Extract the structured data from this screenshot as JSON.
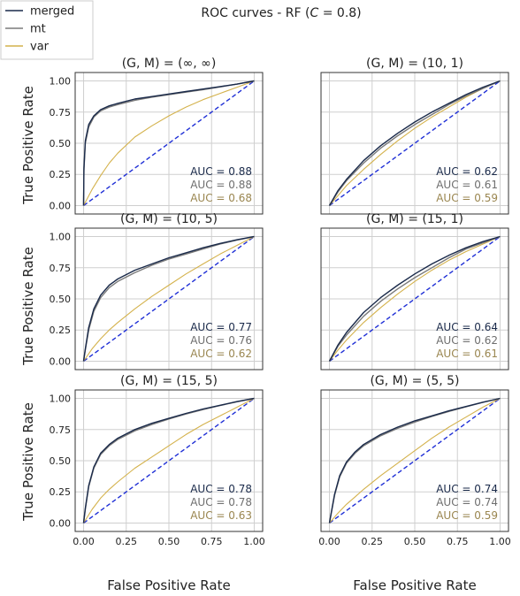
{
  "figure": {
    "title_prefix": "ROC curves - RF (",
    "title_math": "C",
    "title_suffix": " = 0.8)",
    "xlabel": "False Positive Rate",
    "ylabel": "True Positive Rate"
  },
  "legend": {
    "placement": "top-left",
    "entries": [
      {
        "label": "merged",
        "color": "#1a2a4a"
      },
      {
        "label": "mt",
        "color": "#7a7a7a"
      },
      {
        "label": "var",
        "color": "#d4b24c"
      }
    ]
  },
  "colors": {
    "merged": "#1a2a4a",
    "mt": "#7a7a7a",
    "var": "#d4b24c",
    "diagonal": "#1f2fd6",
    "grid": "#cfcfcf",
    "frame": "#333333",
    "auc_merged_text": "#1a2a4a",
    "auc_mt_text": "#6e6e6e",
    "auc_var_text": "#9a8650"
  },
  "chart_data": [
    {
      "type": "line",
      "title_prefix": "(G, M) = (",
      "title_value": "∞, ∞",
      "title_suffix": ")",
      "xlim": [
        0,
        1
      ],
      "ylim": [
        0,
        1
      ],
      "xticks": [
        "0.00",
        "0.25",
        "0.50",
        "0.75",
        "1.00"
      ],
      "yticks": [
        "0.00",
        "0.25",
        "0.50",
        "0.75",
        "1.00"
      ],
      "grid": true,
      "diagonal": true,
      "series": [
        {
          "name": "merged",
          "auc_label": "AUC = 0.88",
          "x": [
            0,
            0.002,
            0.01,
            0.03,
            0.06,
            0.1,
            0.15,
            0.2,
            0.3,
            0.4,
            0.5,
            0.6,
            0.7,
            0.8,
            0.9,
            1.0
          ],
          "y": [
            0,
            0.3,
            0.52,
            0.65,
            0.72,
            0.77,
            0.8,
            0.82,
            0.855,
            0.875,
            0.895,
            0.915,
            0.935,
            0.955,
            0.975,
            1.0
          ]
        },
        {
          "name": "mt",
          "auc_label": "AUC = 0.88",
          "x": [
            0,
            0.002,
            0.01,
            0.03,
            0.06,
            0.1,
            0.15,
            0.2,
            0.3,
            0.4,
            0.5,
            0.6,
            0.7,
            0.8,
            0.9,
            1.0
          ],
          "y": [
            0,
            0.28,
            0.5,
            0.63,
            0.71,
            0.76,
            0.79,
            0.81,
            0.845,
            0.87,
            0.89,
            0.91,
            0.93,
            0.952,
            0.975,
            1.0
          ]
        },
        {
          "name": "var",
          "auc_label": "AUC = 0.68",
          "x": [
            0,
            0.05,
            0.1,
            0.15,
            0.2,
            0.3,
            0.4,
            0.5,
            0.6,
            0.7,
            0.8,
            0.9,
            1.0
          ],
          "y": [
            0,
            0.13,
            0.24,
            0.34,
            0.42,
            0.55,
            0.64,
            0.72,
            0.79,
            0.85,
            0.9,
            0.95,
            1.0
          ]
        }
      ]
    },
    {
      "type": "line",
      "title_prefix": "(G, M) = (",
      "title_value": "10, 1",
      "title_suffix": ")",
      "xlim": [
        0,
        1
      ],
      "ylim": [
        0,
        1
      ],
      "xticks": [
        "0.00",
        "0.25",
        "0.50",
        "0.75",
        "1.00"
      ],
      "yticks": [
        "0.00",
        "0.25",
        "0.50",
        "0.75",
        "1.00"
      ],
      "grid": true,
      "diagonal": true,
      "series": [
        {
          "name": "merged",
          "auc_label": "AUC = 0.62",
          "x": [
            0,
            0.05,
            0.1,
            0.2,
            0.3,
            0.4,
            0.5,
            0.6,
            0.7,
            0.8,
            0.9,
            1.0
          ],
          "y": [
            0,
            0.12,
            0.21,
            0.36,
            0.48,
            0.58,
            0.67,
            0.75,
            0.82,
            0.89,
            0.95,
            1.0
          ]
        },
        {
          "name": "mt",
          "auc_label": "AUC = 0.61",
          "x": [
            0,
            0.05,
            0.1,
            0.2,
            0.3,
            0.4,
            0.5,
            0.6,
            0.7,
            0.8,
            0.9,
            1.0
          ],
          "y": [
            0,
            0.11,
            0.2,
            0.34,
            0.46,
            0.56,
            0.65,
            0.73,
            0.81,
            0.88,
            0.94,
            1.0
          ]
        },
        {
          "name": "var",
          "auc_label": "AUC = 0.59",
          "x": [
            0,
            0.05,
            0.1,
            0.2,
            0.3,
            0.4,
            0.5,
            0.6,
            0.7,
            0.8,
            0.9,
            1.0
          ],
          "y": [
            0,
            0.08,
            0.16,
            0.29,
            0.41,
            0.52,
            0.62,
            0.71,
            0.79,
            0.87,
            0.94,
            1.0
          ]
        }
      ]
    },
    {
      "type": "line",
      "title_prefix": "(G, M) = (",
      "title_value": "10, 5",
      "title_suffix": ")",
      "xlim": [
        0,
        1
      ],
      "ylim": [
        0,
        1
      ],
      "xticks": [
        "0.00",
        "0.25",
        "0.50",
        "0.75",
        "1.00"
      ],
      "yticks": [
        "0.00",
        "0.25",
        "0.50",
        "0.75",
        "1.00"
      ],
      "grid": true,
      "diagonal": true,
      "series": [
        {
          "name": "merged",
          "auc_label": "AUC = 0.77",
          "x": [
            0,
            0.01,
            0.03,
            0.06,
            0.1,
            0.15,
            0.2,
            0.3,
            0.4,
            0.5,
            0.6,
            0.7,
            0.8,
            0.9,
            1.0
          ],
          "y": [
            0,
            0.1,
            0.27,
            0.42,
            0.53,
            0.61,
            0.66,
            0.73,
            0.78,
            0.83,
            0.87,
            0.91,
            0.945,
            0.975,
            1.0
          ]
        },
        {
          "name": "mt",
          "auc_label": "AUC = 0.76",
          "x": [
            0,
            0.01,
            0.03,
            0.06,
            0.1,
            0.15,
            0.2,
            0.3,
            0.4,
            0.5,
            0.6,
            0.7,
            0.8,
            0.9,
            1.0
          ],
          "y": [
            0,
            0.09,
            0.25,
            0.4,
            0.51,
            0.59,
            0.64,
            0.71,
            0.77,
            0.82,
            0.86,
            0.9,
            0.94,
            0.972,
            1.0
          ]
        },
        {
          "name": "var",
          "auc_label": "AUC = 0.62",
          "x": [
            0,
            0.05,
            0.1,
            0.15,
            0.2,
            0.3,
            0.4,
            0.5,
            0.6,
            0.7,
            0.8,
            0.9,
            1.0
          ],
          "y": [
            0,
            0.1,
            0.18,
            0.25,
            0.31,
            0.42,
            0.52,
            0.61,
            0.7,
            0.78,
            0.86,
            0.93,
            1.0
          ]
        }
      ]
    },
    {
      "type": "line",
      "title_prefix": "(G, M) = (",
      "title_value": "15, 1",
      "title_suffix": ")",
      "xlim": [
        0,
        1
      ],
      "ylim": [
        0,
        1
      ],
      "xticks": [
        "0.00",
        "0.25",
        "0.50",
        "0.75",
        "1.00"
      ],
      "yticks": [
        "0.00",
        "0.25",
        "0.50",
        "0.75",
        "1.00"
      ],
      "grid": true,
      "diagonal": true,
      "series": [
        {
          "name": "merged",
          "auc_label": "AUC = 0.64",
          "x": [
            0,
            0.05,
            0.1,
            0.2,
            0.3,
            0.4,
            0.5,
            0.6,
            0.7,
            0.8,
            0.9,
            1.0
          ],
          "y": [
            0,
            0.13,
            0.23,
            0.39,
            0.51,
            0.61,
            0.7,
            0.78,
            0.85,
            0.91,
            0.96,
            1.0
          ]
        },
        {
          "name": "mt",
          "auc_label": "AUC = 0.62",
          "x": [
            0,
            0.05,
            0.1,
            0.2,
            0.3,
            0.4,
            0.5,
            0.6,
            0.7,
            0.8,
            0.9,
            1.0
          ],
          "y": [
            0,
            0.12,
            0.21,
            0.36,
            0.48,
            0.58,
            0.67,
            0.75,
            0.83,
            0.9,
            0.95,
            1.0
          ]
        },
        {
          "name": "var",
          "auc_label": "AUC = 0.61",
          "x": [
            0,
            0.05,
            0.1,
            0.2,
            0.3,
            0.4,
            0.5,
            0.6,
            0.7,
            0.8,
            0.9,
            1.0
          ],
          "y": [
            0,
            0.09,
            0.17,
            0.31,
            0.43,
            0.54,
            0.64,
            0.73,
            0.81,
            0.88,
            0.94,
            1.0
          ]
        }
      ]
    },
    {
      "type": "line",
      "title_prefix": "(G, M) = (",
      "title_value": "15, 5",
      "title_suffix": ")",
      "xlim": [
        0,
        1
      ],
      "ylim": [
        0,
        1
      ],
      "xticks": [
        "0.00",
        "0.25",
        "0.50",
        "0.75",
        "1.00"
      ],
      "yticks": [
        "0.00",
        "0.25",
        "0.50",
        "0.75",
        "1.00"
      ],
      "grid": true,
      "diagonal": true,
      "series": [
        {
          "name": "merged",
          "auc_label": "AUC = 0.78",
          "x": [
            0,
            0.01,
            0.03,
            0.06,
            0.1,
            0.15,
            0.2,
            0.3,
            0.4,
            0.5,
            0.6,
            0.7,
            0.8,
            0.9,
            1.0
          ],
          "y": [
            0,
            0.12,
            0.3,
            0.45,
            0.56,
            0.63,
            0.68,
            0.75,
            0.8,
            0.84,
            0.88,
            0.915,
            0.945,
            0.975,
            1.0
          ]
        },
        {
          "name": "mt",
          "auc_label": "AUC = 0.78",
          "x": [
            0,
            0.01,
            0.03,
            0.06,
            0.1,
            0.15,
            0.2,
            0.3,
            0.4,
            0.5,
            0.6,
            0.7,
            0.8,
            0.9,
            1.0
          ],
          "y": [
            0,
            0.11,
            0.29,
            0.44,
            0.55,
            0.62,
            0.67,
            0.74,
            0.79,
            0.835,
            0.875,
            0.91,
            0.943,
            0.973,
            1.0
          ]
        },
        {
          "name": "var",
          "auc_label": "AUC = 0.63",
          "x": [
            0,
            0.05,
            0.1,
            0.15,
            0.2,
            0.3,
            0.4,
            0.5,
            0.6,
            0.7,
            0.8,
            0.9,
            1.0
          ],
          "y": [
            0,
            0.11,
            0.2,
            0.27,
            0.33,
            0.44,
            0.53,
            0.62,
            0.71,
            0.79,
            0.86,
            0.93,
            1.0
          ]
        }
      ]
    },
    {
      "type": "line",
      "title_prefix": "(G, M) = (",
      "title_value": "5, 5",
      "title_suffix": ")",
      "xlim": [
        0,
        1
      ],
      "ylim": [
        0,
        1
      ],
      "xticks": [
        "0.00",
        "0.25",
        "0.50",
        "0.75",
        "1.00"
      ],
      "yticks": [
        "0.00",
        "0.25",
        "0.50",
        "0.75",
        "1.00"
      ],
      "grid": true,
      "diagonal": true,
      "series": [
        {
          "name": "merged",
          "auc_label": "AUC = 0.74",
          "x": [
            0,
            0.01,
            0.03,
            0.06,
            0.1,
            0.15,
            0.2,
            0.3,
            0.4,
            0.5,
            0.6,
            0.7,
            0.8,
            0.9,
            1.0
          ],
          "y": [
            0,
            0.08,
            0.23,
            0.38,
            0.49,
            0.57,
            0.63,
            0.71,
            0.77,
            0.82,
            0.86,
            0.9,
            0.935,
            0.97,
            1.0
          ]
        },
        {
          "name": "mt",
          "auc_label": "AUC = 0.74",
          "x": [
            0,
            0.01,
            0.03,
            0.06,
            0.1,
            0.15,
            0.2,
            0.3,
            0.4,
            0.5,
            0.6,
            0.7,
            0.8,
            0.9,
            1.0
          ],
          "y": [
            0,
            0.075,
            0.22,
            0.37,
            0.48,
            0.56,
            0.62,
            0.7,
            0.76,
            0.81,
            0.855,
            0.895,
            0.932,
            0.968,
            1.0
          ]
        },
        {
          "name": "var",
          "auc_label": "AUC = 0.59",
          "x": [
            0,
            0.05,
            0.1,
            0.15,
            0.2,
            0.3,
            0.4,
            0.5,
            0.6,
            0.7,
            0.8,
            0.9,
            1.0
          ],
          "y": [
            0,
            0.08,
            0.15,
            0.21,
            0.27,
            0.38,
            0.48,
            0.58,
            0.68,
            0.77,
            0.85,
            0.93,
            1.0
          ]
        }
      ]
    }
  ]
}
